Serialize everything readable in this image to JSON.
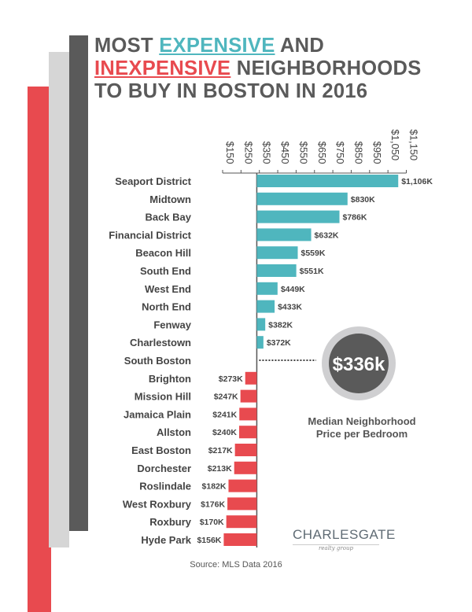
{
  "title": {
    "line1_a": "MOST ",
    "line1_b": "EXPENSIVE",
    "line1_c": " AND",
    "line2_a": "INEXPENSIVE",
    "line2_b": " NEIGHBORHOODS",
    "line3": "TO BUY IN BOSTON IN 2016"
  },
  "colors": {
    "expensive": "#4fb6be",
    "inexpensive": "#e84a4f",
    "dark": "#5a5a5a",
    "light_gray": "#d6d6d6"
  },
  "chart_data": {
    "type": "bar",
    "orientation": "horizontal",
    "baseline": 336,
    "unit": "K",
    "x_ticks": [
      "$150",
      "$250",
      "$350",
      "$450",
      "$550",
      "$650",
      "$750",
      "$850",
      "$950",
      "$1,050",
      "$1,150"
    ],
    "xlim": [
      150,
      1150
    ],
    "categories": [
      "Seaport District",
      "Midtown",
      "Back Bay",
      "Financial District",
      "Beacon Hill",
      "South End",
      "West End",
      "North End",
      "Fenway",
      "Charlestown",
      "South Boston",
      "Brighton",
      "Mission Hill",
      "Jamaica Plain",
      "Allston",
      "East Boston",
      "Dorchester",
      "Roslindale",
      "West Roxbury",
      "Roxbury",
      "Hyde Park"
    ],
    "values": [
      1106,
      830,
      786,
      632,
      559,
      551,
      449,
      433,
      382,
      372,
      336,
      273,
      247,
      241,
      240,
      217,
      213,
      182,
      176,
      170,
      156
    ],
    "labels": [
      "$1,106K",
      "$830K",
      "$786K",
      "$632K",
      "$559K",
      "$551K",
      "$449K",
      "$433K",
      "$382K",
      "$372K",
      "",
      "$273K",
      "$247K",
      "$241K",
      "$240K",
      "$217K",
      "$213K",
      "$182K",
      "$176K",
      "$170K",
      "$156K"
    ]
  },
  "median": {
    "value": "$336k",
    "label_line1": "Median Neighborhood",
    "label_line2": "Price per Bedroom"
  },
  "logo": {
    "main": "CHARLESGATE",
    "sub": "realty group"
  },
  "source": "Source: MLS Data 2016"
}
